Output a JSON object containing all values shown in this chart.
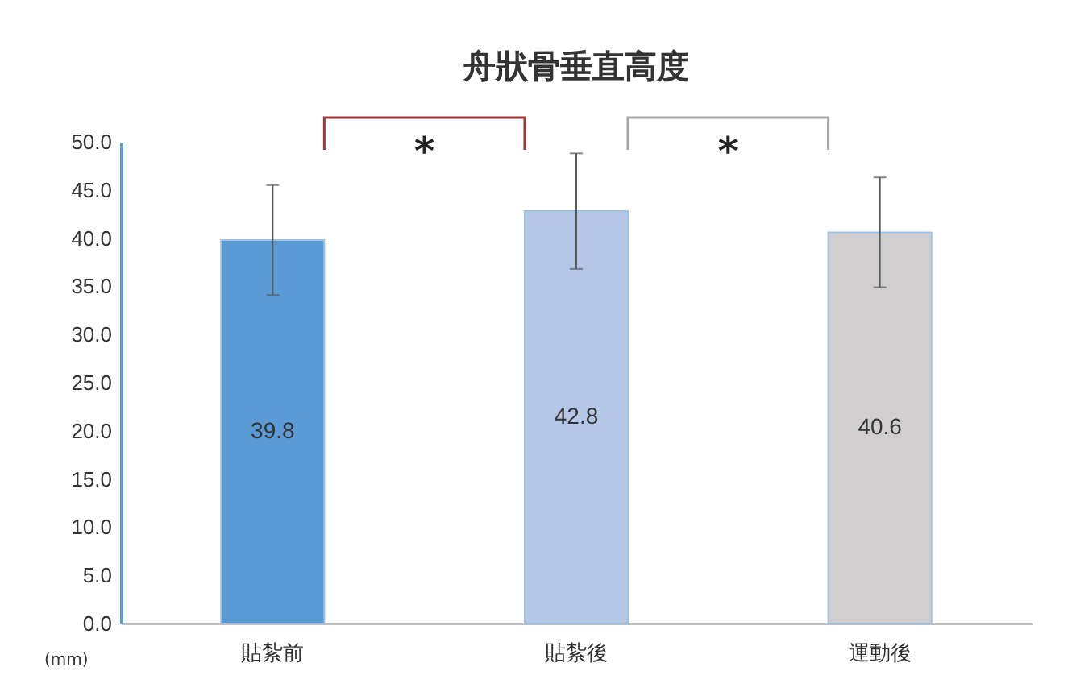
{
  "chart_data": {
    "type": "bar",
    "title": "舟狀骨垂直高度",
    "ylabel": "(mm)",
    "categories": [
      "貼紮前",
      "貼紮後",
      "運動後"
    ],
    "values": [
      39.8,
      42.8,
      40.6
    ],
    "colors": [
      "#5b9bd5",
      "#b4c7e7",
      "#d0cece"
    ],
    "errors": [
      5.7,
      6.0,
      5.7
    ],
    "ylim": [
      0,
      50
    ],
    "yticks": [
      {
        "value": 0,
        "label": "0.0"
      },
      {
        "value": 5,
        "label": "5.0"
      },
      {
        "value": 10,
        "label": "10.0"
      },
      {
        "value": 15,
        "label": "15.0"
      },
      {
        "value": 20,
        "label": "20.0"
      },
      {
        "value": 25,
        "label": "25.0"
      },
      {
        "value": 30,
        "label": "30.0"
      },
      {
        "value": 35,
        "label": "35.0"
      },
      {
        "value": 40,
        "label": "40.0"
      },
      {
        "value": 45,
        "label": "45.0"
      },
      {
        "value": 50,
        "label": "50.0"
      }
    ],
    "data_labels": true,
    "grid": false,
    "annotations": [
      "*",
      "*"
    ]
  }
}
